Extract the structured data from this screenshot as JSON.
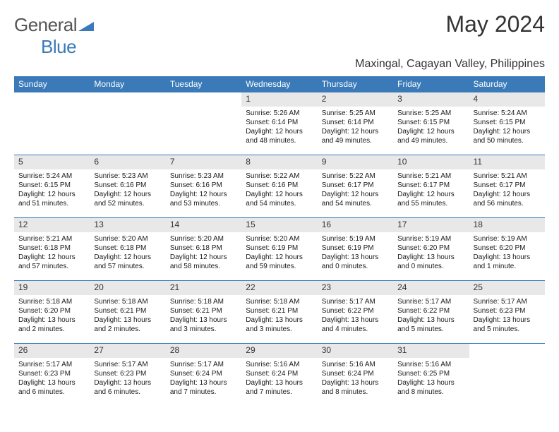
{
  "brand": {
    "part1": "General",
    "part2": "Blue"
  },
  "title": "May 2024",
  "subtitle": "Maxingal, Cagayan Valley, Philippines",
  "colors": {
    "header_bg": "#3a7ab8",
    "header_text": "#ffffff",
    "daynum_bg": "#e8e8e8",
    "border": "#3a7ab8",
    "body_text": "#1a1a1a",
    "title_text": "#333333",
    "logo_gray": "#555555",
    "logo_blue": "#3a7ab8",
    "background": "#ffffff"
  },
  "typography": {
    "title_fontsize": 32,
    "subtitle_fontsize": 16,
    "dayheader_fontsize": 12,
    "daynum_fontsize": 12,
    "cell_fontsize": 10,
    "logo_fontsize": 26
  },
  "day_headers": [
    "Sunday",
    "Monday",
    "Tuesday",
    "Wednesday",
    "Thursday",
    "Friday",
    "Saturday"
  ],
  "weeks": [
    [
      null,
      null,
      null,
      {
        "n": "1",
        "sr": "Sunrise: 5:26 AM",
        "ss": "Sunset: 6:14 PM",
        "d1": "Daylight: 12 hours",
        "d2": "and 48 minutes."
      },
      {
        "n": "2",
        "sr": "Sunrise: 5:25 AM",
        "ss": "Sunset: 6:14 PM",
        "d1": "Daylight: 12 hours",
        "d2": "and 49 minutes."
      },
      {
        "n": "3",
        "sr": "Sunrise: 5:25 AM",
        "ss": "Sunset: 6:15 PM",
        "d1": "Daylight: 12 hours",
        "d2": "and 49 minutes."
      },
      {
        "n": "4",
        "sr": "Sunrise: 5:24 AM",
        "ss": "Sunset: 6:15 PM",
        "d1": "Daylight: 12 hours",
        "d2": "and 50 minutes."
      }
    ],
    [
      {
        "n": "5",
        "sr": "Sunrise: 5:24 AM",
        "ss": "Sunset: 6:15 PM",
        "d1": "Daylight: 12 hours",
        "d2": "and 51 minutes."
      },
      {
        "n": "6",
        "sr": "Sunrise: 5:23 AM",
        "ss": "Sunset: 6:16 PM",
        "d1": "Daylight: 12 hours",
        "d2": "and 52 minutes."
      },
      {
        "n": "7",
        "sr": "Sunrise: 5:23 AM",
        "ss": "Sunset: 6:16 PM",
        "d1": "Daylight: 12 hours",
        "d2": "and 53 minutes."
      },
      {
        "n": "8",
        "sr": "Sunrise: 5:22 AM",
        "ss": "Sunset: 6:16 PM",
        "d1": "Daylight: 12 hours",
        "d2": "and 54 minutes."
      },
      {
        "n": "9",
        "sr": "Sunrise: 5:22 AM",
        "ss": "Sunset: 6:17 PM",
        "d1": "Daylight: 12 hours",
        "d2": "and 54 minutes."
      },
      {
        "n": "10",
        "sr": "Sunrise: 5:21 AM",
        "ss": "Sunset: 6:17 PM",
        "d1": "Daylight: 12 hours",
        "d2": "and 55 minutes."
      },
      {
        "n": "11",
        "sr": "Sunrise: 5:21 AM",
        "ss": "Sunset: 6:17 PM",
        "d1": "Daylight: 12 hours",
        "d2": "and 56 minutes."
      }
    ],
    [
      {
        "n": "12",
        "sr": "Sunrise: 5:21 AM",
        "ss": "Sunset: 6:18 PM",
        "d1": "Daylight: 12 hours",
        "d2": "and 57 minutes."
      },
      {
        "n": "13",
        "sr": "Sunrise: 5:20 AM",
        "ss": "Sunset: 6:18 PM",
        "d1": "Daylight: 12 hours",
        "d2": "and 57 minutes."
      },
      {
        "n": "14",
        "sr": "Sunrise: 5:20 AM",
        "ss": "Sunset: 6:18 PM",
        "d1": "Daylight: 12 hours",
        "d2": "and 58 minutes."
      },
      {
        "n": "15",
        "sr": "Sunrise: 5:20 AM",
        "ss": "Sunset: 6:19 PM",
        "d1": "Daylight: 12 hours",
        "d2": "and 59 minutes."
      },
      {
        "n": "16",
        "sr": "Sunrise: 5:19 AM",
        "ss": "Sunset: 6:19 PM",
        "d1": "Daylight: 13 hours",
        "d2": "and 0 minutes."
      },
      {
        "n": "17",
        "sr": "Sunrise: 5:19 AM",
        "ss": "Sunset: 6:20 PM",
        "d1": "Daylight: 13 hours",
        "d2": "and 0 minutes."
      },
      {
        "n": "18",
        "sr": "Sunrise: 5:19 AM",
        "ss": "Sunset: 6:20 PM",
        "d1": "Daylight: 13 hours",
        "d2": "and 1 minute."
      }
    ],
    [
      {
        "n": "19",
        "sr": "Sunrise: 5:18 AM",
        "ss": "Sunset: 6:20 PM",
        "d1": "Daylight: 13 hours",
        "d2": "and 2 minutes."
      },
      {
        "n": "20",
        "sr": "Sunrise: 5:18 AM",
        "ss": "Sunset: 6:21 PM",
        "d1": "Daylight: 13 hours",
        "d2": "and 2 minutes."
      },
      {
        "n": "21",
        "sr": "Sunrise: 5:18 AM",
        "ss": "Sunset: 6:21 PM",
        "d1": "Daylight: 13 hours",
        "d2": "and 3 minutes."
      },
      {
        "n": "22",
        "sr": "Sunrise: 5:18 AM",
        "ss": "Sunset: 6:21 PM",
        "d1": "Daylight: 13 hours",
        "d2": "and 3 minutes."
      },
      {
        "n": "23",
        "sr": "Sunrise: 5:17 AM",
        "ss": "Sunset: 6:22 PM",
        "d1": "Daylight: 13 hours",
        "d2": "and 4 minutes."
      },
      {
        "n": "24",
        "sr": "Sunrise: 5:17 AM",
        "ss": "Sunset: 6:22 PM",
        "d1": "Daylight: 13 hours",
        "d2": "and 5 minutes."
      },
      {
        "n": "25",
        "sr": "Sunrise: 5:17 AM",
        "ss": "Sunset: 6:23 PM",
        "d1": "Daylight: 13 hours",
        "d2": "and 5 minutes."
      }
    ],
    [
      {
        "n": "26",
        "sr": "Sunrise: 5:17 AM",
        "ss": "Sunset: 6:23 PM",
        "d1": "Daylight: 13 hours",
        "d2": "and 6 minutes."
      },
      {
        "n": "27",
        "sr": "Sunrise: 5:17 AM",
        "ss": "Sunset: 6:23 PM",
        "d1": "Daylight: 13 hours",
        "d2": "and 6 minutes."
      },
      {
        "n": "28",
        "sr": "Sunrise: 5:17 AM",
        "ss": "Sunset: 6:24 PM",
        "d1": "Daylight: 13 hours",
        "d2": "and 7 minutes."
      },
      {
        "n": "29",
        "sr": "Sunrise: 5:16 AM",
        "ss": "Sunset: 6:24 PM",
        "d1": "Daylight: 13 hours",
        "d2": "and 7 minutes."
      },
      {
        "n": "30",
        "sr": "Sunrise: 5:16 AM",
        "ss": "Sunset: 6:24 PM",
        "d1": "Daylight: 13 hours",
        "d2": "and 8 minutes."
      },
      {
        "n": "31",
        "sr": "Sunrise: 5:16 AM",
        "ss": "Sunset: 6:25 PM",
        "d1": "Daylight: 13 hours",
        "d2": "and 8 minutes."
      },
      null
    ]
  ]
}
